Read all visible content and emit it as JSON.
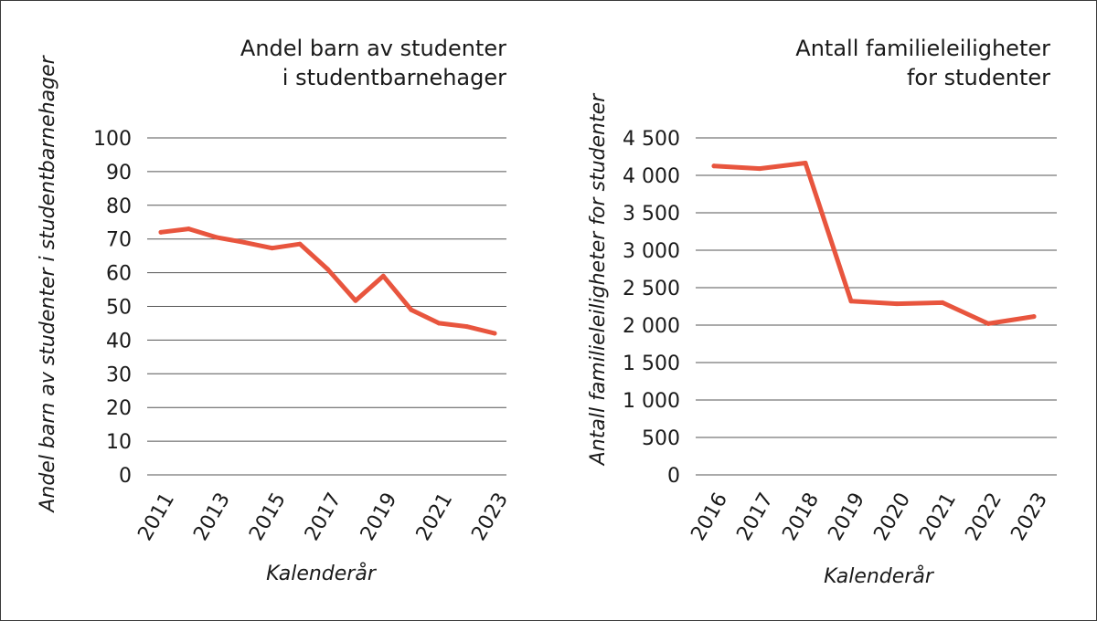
{
  "colors": {
    "series": "#e8553e"
  },
  "chart_data": [
    {
      "type": "line",
      "title": [
        "Andel barn av studenter",
        "i studentbarnehager"
      ],
      "xlabel": "Kalenderår",
      "ylabel": "Andel barn av studenter i studentbarnehager",
      "ylim": [
        0,
        100
      ],
      "yticks": [
        "0",
        "10",
        "20",
        "30",
        "40",
        "50",
        "60",
        "70",
        "80",
        "90",
        "100"
      ],
      "xtick_labels": [
        "2011",
        "2013",
        "2015",
        "2017",
        "2019",
        "2021",
        "2023"
      ],
      "x": [
        2011,
        2012,
        2013,
        2014,
        2015,
        2016,
        2017,
        2018,
        2019,
        2020,
        2021,
        2022,
        2023
      ],
      "values": [
        72,
        73,
        70.5,
        69,
        67.3,
        68.5,
        61,
        51.7,
        59,
        49,
        45,
        44,
        42
      ],
      "grid": true
    },
    {
      "type": "line",
      "title": [
        "Antall familieleiligheter",
        "for studenter"
      ],
      "xlabel": "Kalenderår",
      "ylabel": "Antall familieleiligheter for studenter",
      "ylim": [
        0,
        4500
      ],
      "yticks": [
        "0",
        "500",
        "1 000",
        "1 500",
        "2 000",
        "2 500",
        "3 000",
        "3 500",
        "4 000",
        "4 500"
      ],
      "xtick_labels": [
        "2016",
        "2017",
        "2018",
        "2019",
        "2020",
        "2021",
        "2022",
        "2023"
      ],
      "x": [
        2016,
        2017,
        2018,
        2019,
        2020,
        2021,
        2022,
        2023
      ],
      "values": [
        4125,
        4090,
        4165,
        2320,
        2285,
        2300,
        2020,
        2115
      ],
      "grid": true
    }
  ]
}
